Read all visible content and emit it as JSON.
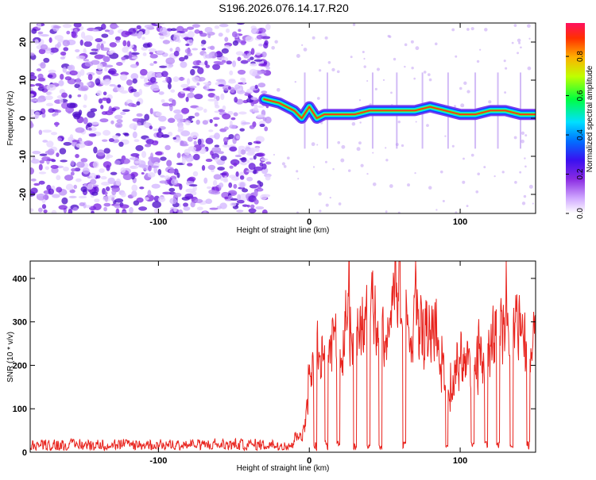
{
  "title": "S196.2026.076.14.17.R20",
  "chart_data": [
    {
      "type": "heatmap",
      "xlabel": "Height of straight line (km)",
      "ylabel": "Frequency (Hz)",
      "xlim": [
        -185,
        150
      ],
      "ylim": [
        -25,
        25
      ],
      "xticks": [
        -100,
        0,
        100
      ],
      "yticks": [
        -20,
        -10,
        0,
        10,
        20
      ],
      "colorbar": {
        "label": "Normalized spectral amplitude",
        "range": [
          0,
          0.97
        ],
        "ticks": [
          "0.0",
          "0.2",
          "0.4",
          "0.6",
          "0.8"
        ],
        "tick_values": [
          0.0,
          0.2,
          0.4,
          0.6,
          0.8
        ]
      },
      "ridge": {
        "x": [
          -30,
          -20,
          -10,
          -5,
          0,
          5,
          10,
          20,
          30,
          40,
          50,
          60,
          70,
          80,
          90,
          100,
          110,
          120,
          130,
          140,
          150
        ],
        "y": [
          5,
          4,
          2,
          0,
          3,
          0,
          1,
          1,
          1,
          2,
          2,
          2,
          2,
          3,
          2,
          1,
          1,
          2,
          2,
          1,
          1
        ]
      }
    },
    {
      "type": "line",
      "xlabel": "Height of straight line (km)",
      "ylabel": "SNR (10 * v/v)",
      "xlim": [
        -185,
        150
      ],
      "ylim": [
        0,
        440
      ],
      "xticks": [
        -100,
        0,
        100
      ],
      "yticks": [
        0,
        100,
        200,
        300,
        400
      ],
      "series": [
        {
          "name": "SNR",
          "color": "#e8241e",
          "x": [
            -185,
            -150,
            -100,
            -60,
            -40,
            -30,
            -20,
            -15,
            -10,
            -5,
            0,
            5,
            10,
            15,
            20,
            25,
            30,
            35,
            40,
            45,
            50,
            55,
            60,
            65,
            70,
            75,
            80,
            85,
            90,
            95,
            100,
            105,
            110,
            115,
            120,
            125,
            130,
            135,
            140,
            145,
            150
          ],
          "y": [
            12,
            15,
            14,
            15,
            20,
            30,
            40,
            40,
            45,
            35,
            160,
            240,
            220,
            230,
            270,
            320,
            310,
            330,
            360,
            330,
            300,
            330,
            420,
            350,
            320,
            310,
            280,
            290,
            180,
            150,
            260,
            230,
            200,
            230,
            250,
            300,
            320,
            300,
            340,
            210,
            270
          ]
        }
      ]
    }
  ]
}
